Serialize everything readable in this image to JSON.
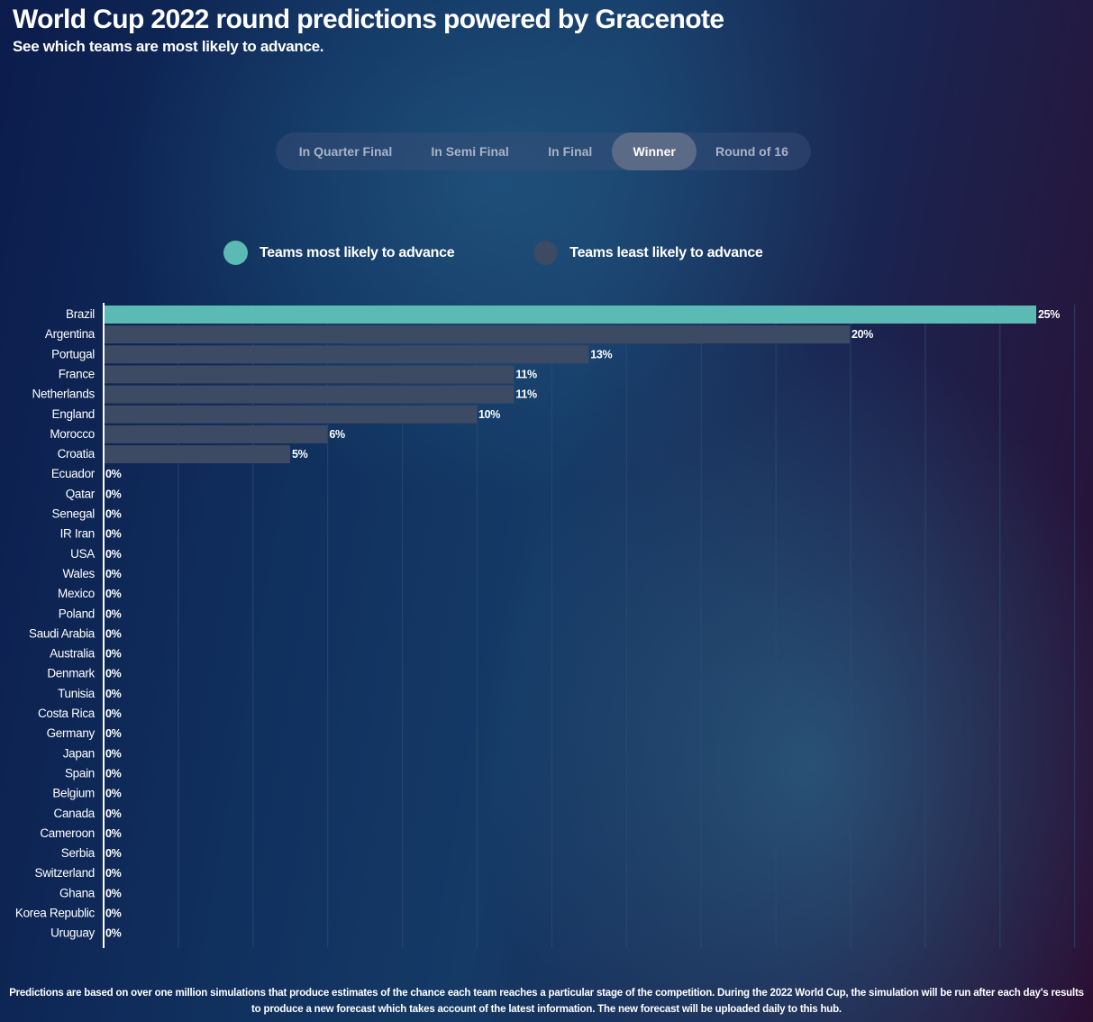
{
  "header": {
    "title": "World Cup 2022 round predictions powered by Gracenote",
    "subtitle": "See which teams are most likely to advance."
  },
  "tabs": [
    {
      "label": "In Quarter Final",
      "active": false
    },
    {
      "label": "In Semi Final",
      "active": false
    },
    {
      "label": "In Final",
      "active": false
    },
    {
      "label": "Winner",
      "active": true
    },
    {
      "label": "Round of 16",
      "active": false
    }
  ],
  "legend": {
    "most": {
      "label": "Teams most likely to advance",
      "color": "#5bbab3"
    },
    "least": {
      "label": "Teams least likely to advance",
      "color": "#3c4a63"
    }
  },
  "chart_data": {
    "type": "bar",
    "orientation": "horizontal",
    "title": "",
    "categories": [
      "Brazil",
      "Argentina",
      "Portugal",
      "France",
      "Netherlands",
      "England",
      "Morocco",
      "Croatia",
      "Ecuador",
      "Qatar",
      "Senegal",
      "IR Iran",
      "USA",
      "Wales",
      "Mexico",
      "Poland",
      "Saudi Arabia",
      "Australia",
      "Denmark",
      "Tunisia",
      "Costa Rica",
      "Germany",
      "Japan",
      "Spain",
      "Belgium",
      "Canada",
      "Cameroon",
      "Serbia",
      "Switzerland",
      "Ghana",
      "Korea Republic",
      "Uruguay"
    ],
    "values": [
      25,
      20,
      13,
      11,
      11,
      10,
      6,
      5,
      0,
      0,
      0,
      0,
      0,
      0,
      0,
      0,
      0,
      0,
      0,
      0,
      0,
      0,
      0,
      0,
      0,
      0,
      0,
      0,
      0,
      0,
      0,
      0
    ],
    "labels": [
      "25%",
      "20%",
      "13%",
      "11%",
      "11%",
      "10%",
      "6%",
      "5%",
      "0%",
      "0%",
      "0%",
      "0%",
      "0%",
      "0%",
      "0%",
      "0%",
      "0%",
      "0%",
      "0%",
      "0%",
      "0%",
      "0%",
      "0%",
      "0%",
      "0%",
      "0%",
      "0%",
      "0%",
      "0%",
      "0%",
      "0%",
      "0%"
    ],
    "highlight": [
      "Brazil"
    ],
    "xlim": [
      0,
      26
    ],
    "xlabel": "",
    "ylabel": "",
    "grid": true,
    "colors": {
      "highlight": "#5bbab3",
      "bar": "#3c4a63",
      "grid": "#2e4a72",
      "axis": "#ffffff"
    }
  },
  "footnote": "Predictions are based on over one million simulations that produce estimates of the chance each team reaches a particular stage of the competition. During the 2022 World Cup, the simulation will be run after each day's results to produce a new forecast which takes account of the latest information. The new forecast will be uploaded daily to this hub."
}
